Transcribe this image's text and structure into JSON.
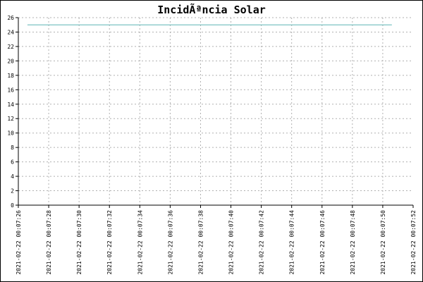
{
  "chart_data": {
    "type": "line",
    "title": "IncidÃªncia Solar",
    "xlabel": "",
    "ylabel": "",
    "ylim": [
      0,
      26
    ],
    "yticks": [
      0,
      2,
      4,
      6,
      8,
      10,
      12,
      14,
      16,
      18,
      20,
      22,
      24,
      26
    ],
    "xticks": [
      "2021-02-22 00:07:26",
      "2021-02-22 00:07:28",
      "2021-02-22 00:07:30",
      "2021-02-22 00:07:32",
      "2021-02-22 00:07:34",
      "2021-02-22 00:07:36",
      "2021-02-22 00:07:38",
      "2021-02-22 00:07:40",
      "2021-02-22 00:07:42",
      "2021-02-22 00:07:44",
      "2021-02-22 00:07:46",
      "2021-02-22 00:07:48",
      "2021-02-22 00:07:50",
      "2021-02-22 00:07:52"
    ],
    "grid": true,
    "series": [
      {
        "color": "#5fb6b6",
        "x": [
          "2021-02-22 00:07:26.6",
          "2021-02-22 00:07:50.6"
        ],
        "values": [
          25,
          25
        ]
      }
    ]
  }
}
